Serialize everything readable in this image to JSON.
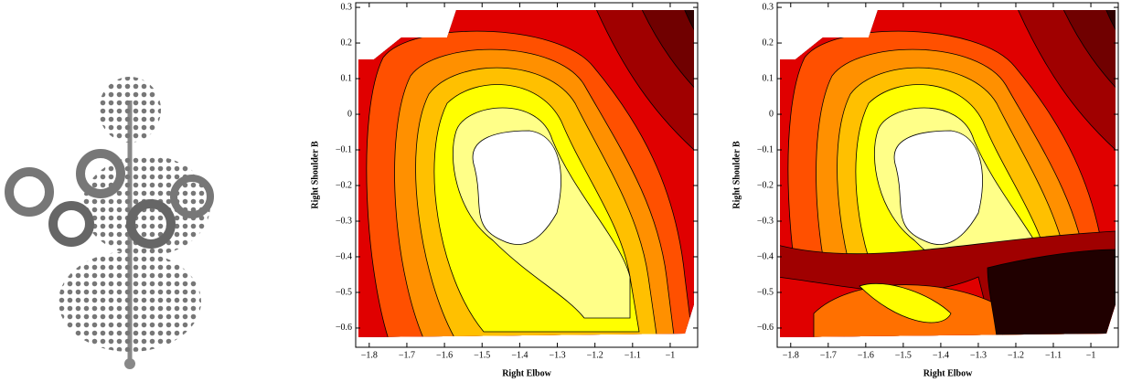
{
  "chart_data": [
    {
      "type": "contour",
      "xlabel": "Right Elbow",
      "ylabel": "Right Shoulder B",
      "xlim": [
        -1.836,
        -0.927
      ],
      "ylim": [
        -0.654,
        0.313
      ],
      "xticks": [
        {
          "value": -1.8,
          "label": "−1.8"
        },
        {
          "value": -1.7,
          "label": "−1.7"
        },
        {
          "value": -1.6,
          "label": "−1.6"
        },
        {
          "value": -1.5,
          "label": "−1.5"
        },
        {
          "value": -1.4,
          "label": "−1.4"
        },
        {
          "value": -1.3,
          "label": "−1.3"
        },
        {
          "value": -1.2,
          "label": "−1.2"
        },
        {
          "value": -1.1,
          "label": "−1.1"
        },
        {
          "value": -1,
          "label": "−1"
        }
      ],
      "yticks": [
        0.3,
        0.2,
        0.1,
        0,
        {
          "value": -0.1,
          "label": "−0.1"
        },
        {
          "value": -0.2,
          "label": "−0.2"
        },
        {
          "value": -0.3,
          "label": "−0.3"
        },
        {
          "value": -0.4,
          "label": "−0.4"
        },
        {
          "value": -0.5,
          "label": "−0.5"
        },
        {
          "value": -0.6,
          "label": "−0.6"
        }
      ]
    },
    {
      "type": "contour",
      "xlabel": "Right Elbow",
      "ylabel": "Right Shoulder B",
      "xlim": [
        -1.836,
        -0.927
      ],
      "ylim": [
        -0.654,
        0.313
      ],
      "xticks": [
        {
          "value": -1.8,
          "label": "−1.8"
        },
        {
          "value": -1.7,
          "label": "−1.7"
        },
        {
          "value": -1.6,
          "label": "−1.6"
        },
        {
          "value": -1.5,
          "label": "−1.5"
        },
        {
          "value": -1.4,
          "label": "−1.4"
        },
        {
          "value": -1.3,
          "label": "−1.3"
        },
        {
          "value": -1.2,
          "label": "−1.2"
        },
        {
          "value": -1.1,
          "label": "−1.1"
        },
        {
          "value": -1,
          "label": "−1"
        }
      ],
      "yticks": [
        0.3,
        0.2,
        0.1,
        0,
        {
          "value": -0.1,
          "label": "−0.1"
        },
        {
          "value": -0.2,
          "label": "−0.2"
        },
        {
          "value": -0.3,
          "label": "−0.3"
        },
        {
          "value": -0.4,
          "label": "−0.4"
        },
        {
          "value": -0.5,
          "label": "−0.5"
        },
        {
          "value": -0.6,
          "label": "−0.6"
        }
      ]
    }
  ]
}
